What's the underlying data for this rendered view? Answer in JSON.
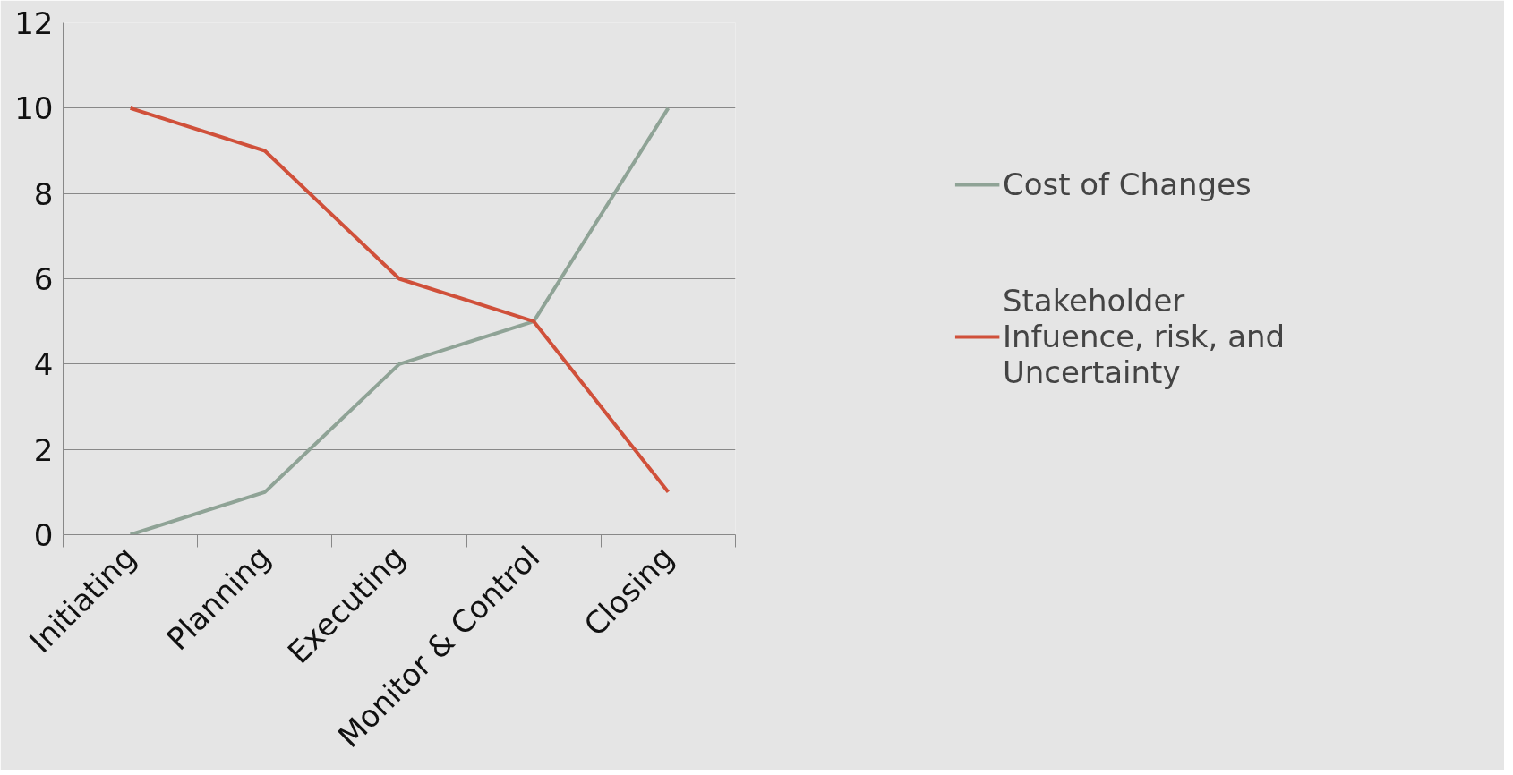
{
  "chart_data": {
    "type": "line",
    "categories": [
      "Initiating",
      "Planning",
      "Executing",
      "Monitor & Control",
      "Closing"
    ],
    "series": [
      {
        "name": "Cost of Changes",
        "color": "#8fa396",
        "values": [
          0,
          1,
          4,
          5,
          10
        ]
      },
      {
        "name": "Stakeholder Infuence, risk, and Uncertainty",
        "color": "#d0503a",
        "values": [
          10,
          9,
          6,
          5,
          1
        ]
      }
    ],
    "ylim": [
      0,
      12
    ],
    "yticks": [
      0,
      2,
      4,
      6,
      8,
      10,
      12
    ],
    "grid": "y",
    "legend": "right",
    "marker": "none",
    "line_style": "solid"
  }
}
